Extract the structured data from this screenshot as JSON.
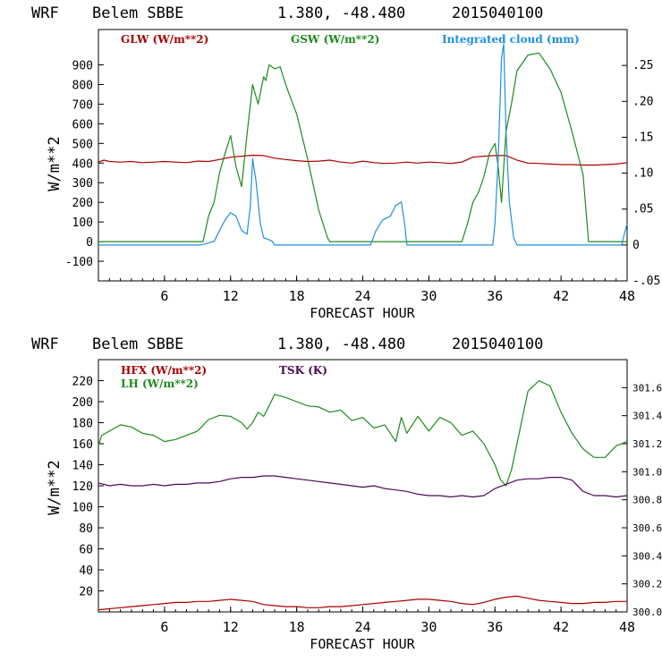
{
  "colors": {
    "red": "#aa0000",
    "green": "#1e8a1e",
    "blue": "#1f8fe0",
    "purple": "#4b0a55",
    "axis": "#000000"
  },
  "chart_data": [
    {
      "type": "line",
      "header": {
        "model": "WRF",
        "station": "Belem SBBE",
        "coords": "1.380, -48.480",
        "init": "2015040100"
      },
      "xlabel": "FORECAST HOUR",
      "ylabel": "W/m**2",
      "xlim": [
        0,
        48
      ],
      "ylim": [
        -200,
        1080
      ],
      "y2lim": [
        -0.05,
        0.3
      ],
      "xticks": [
        "6",
        "12",
        "18",
        "24",
        "30",
        "36",
        "42",
        "48"
      ],
      "yticks": [
        "-100",
        "0",
        "100",
        "200",
        "300",
        "400",
        "500",
        "600",
        "700",
        "800",
        "900"
      ],
      "y2ticks": [
        "-.05",
        "0",
        ".05",
        ".10",
        ".15",
        ".20",
        ".25"
      ],
      "series": [
        {
          "name": "GLW (W/m**2)",
          "axis": "left",
          "color": "red",
          "x": [
            0,
            0.5,
            1,
            2,
            3,
            4,
            5,
            6,
            7,
            8,
            9,
            10,
            11,
            12,
            13,
            14,
            15,
            16,
            17,
            18,
            19,
            20,
            21,
            22,
            23,
            24,
            25,
            26,
            27,
            28,
            29,
            30,
            31,
            32,
            33,
            34,
            35,
            36,
            37,
            38,
            39,
            40,
            41,
            42,
            43,
            44,
            45,
            46,
            47,
            48
          ],
          "y": [
            405,
            415,
            408,
            405,
            408,
            402,
            405,
            408,
            405,
            402,
            410,
            408,
            418,
            430,
            435,
            440,
            438,
            425,
            418,
            412,
            408,
            410,
            415,
            405,
            400,
            410,
            402,
            398,
            400,
            405,
            400,
            405,
            402,
            398,
            405,
            430,
            435,
            438,
            438,
            415,
            400,
            398,
            395,
            392,
            392,
            390,
            390,
            392,
            395,
            402
          ]
        },
        {
          "name": "GSW (W/m**2)",
          "axis": "left",
          "color": "green",
          "x": [
            0,
            9.5,
            10,
            10.5,
            11,
            11.5,
            12,
            12.5,
            13,
            13.5,
            14,
            14.5,
            15,
            15.2,
            15.5,
            16,
            16.5,
            17,
            18,
            19,
            20,
            20.8,
            21,
            33,
            33.5,
            34,
            34.5,
            35,
            35.5,
            36,
            36.3,
            36.6,
            37,
            37.5,
            38,
            39,
            40,
            41,
            42,
            43,
            44,
            44.5,
            48
          ],
          "y": [
            0,
            0,
            130,
            200,
            350,
            450,
            540,
            380,
            280,
            550,
            800,
            700,
            840,
            820,
            900,
            880,
            890,
            800,
            650,
            420,
            160,
            20,
            0,
            0,
            90,
            200,
            250,
            330,
            450,
            500,
            380,
            200,
            560,
            700,
            870,
            950,
            960,
            880,
            760,
            560,
            340,
            0,
            0
          ]
        },
        {
          "name": "Integrated cloud (mm)",
          "axis": "right",
          "color": "blue",
          "x": [
            0,
            9.3,
            10.5,
            11,
            11.5,
            12,
            12.5,
            13,
            13.5,
            13.8,
            14,
            14.3,
            14.7,
            15,
            15.4,
            15.8,
            16,
            24.7,
            25.2,
            25.8,
            26.5,
            27,
            27.5,
            27.8,
            28,
            35.8,
            36,
            36.3,
            36.6,
            36.8,
            37,
            37.3,
            37.7,
            38,
            47.5,
            48
          ],
          "y": [
            0,
            0,
            0.005,
            0.02,
            0.035,
            0.045,
            0.04,
            0.02,
            0.015,
            0.055,
            0.12,
            0.09,
            0.03,
            0.01,
            0.008,
            0.005,
            0,
            0,
            0.02,
            0.035,
            0.04,
            0.055,
            0.06,
            0.03,
            0,
            0,
            0.03,
            0.12,
            0.26,
            0.28,
            0.16,
            0.06,
            0.01,
            0,
            0,
            0.03
          ]
        }
      ]
    },
    {
      "type": "line",
      "header": {
        "model": "WRF",
        "station": "Belem SBBE",
        "coords": "1.380, -48.480",
        "init": "2015040100"
      },
      "xlabel": "FORECAST HOUR",
      "ylabel": "W/m**2",
      "xlim": [
        0,
        48
      ],
      "ylim": [
        0,
        240
      ],
      "y2lim": [
        300.0,
        301.8
      ],
      "xticks": [
        "6",
        "12",
        "18",
        "24",
        "30",
        "36",
        "42",
        "48"
      ],
      "yticks": [
        "20",
        "40",
        "60",
        "80",
        "100",
        "120",
        "140",
        "160",
        "180",
        "200",
        "220"
      ],
      "y2ticks": [
        "300.0",
        "300.2",
        "300.4",
        "300.6",
        "300.8",
        "301.0",
        "301.2",
        "301.4",
        "301.6"
      ],
      "series": [
        {
          "name": "HFX (W/m**2)",
          "axis": "left",
          "color": "red",
          "x": [
            0,
            1,
            2,
            3,
            4,
            5,
            6,
            7,
            8,
            9,
            10,
            11,
            12,
            13,
            14,
            15,
            16,
            17,
            18,
            19,
            20,
            21,
            22,
            23,
            24,
            25,
            26,
            27,
            28,
            29,
            30,
            31,
            32,
            33,
            34,
            35,
            36,
            37,
            38,
            39,
            40,
            41,
            42,
            43,
            44,
            45,
            46,
            47,
            48
          ],
          "y": [
            2,
            3,
            4,
            5,
            6,
            7,
            8,
            9,
            9,
            10,
            10,
            11,
            12,
            11,
            10,
            7,
            6,
            5,
            5,
            4,
            4,
            5,
            5,
            6,
            7,
            8,
            9,
            10,
            11,
            12,
            12,
            11,
            10,
            8,
            7,
            9,
            12,
            14,
            15,
            13,
            11,
            10,
            9,
            8,
            8,
            9,
            9,
            10,
            10
          ]
        },
        {
          "name": "LH  (W/m**2)",
          "axis": "left",
          "color": "green",
          "x": [
            0,
            0.3,
            1,
            2,
            3,
            4,
            5,
            6,
            7,
            8,
            9,
            10,
            11,
            12,
            13,
            13.5,
            14,
            14.5,
            15,
            15.5,
            16,
            17,
            18,
            19,
            20,
            21,
            22,
            23,
            24,
            25,
            26,
            27,
            27.5,
            28,
            29,
            30,
            31,
            32,
            33,
            34,
            35,
            36,
            36.5,
            37,
            37.5,
            38,
            39,
            40,
            41,
            42,
            43,
            44,
            45,
            46,
            47,
            48
          ],
          "y": [
            158,
            168,
            172,
            178,
            176,
            170,
            168,
            162,
            164,
            168,
            172,
            183,
            187,
            186,
            180,
            174,
            180,
            190,
            186,
            196,
            207,
            204,
            200,
            196,
            195,
            190,
            192,
            182,
            185,
            175,
            178,
            162,
            185,
            170,
            186,
            172,
            185,
            180,
            168,
            172,
            160,
            140,
            126,
            120,
            135,
            160,
            210,
            220,
            215,
            190,
            170,
            155,
            147,
            147,
            158,
            162
          ]
        },
        {
          "name": "TSK (K)",
          "axis": "right",
          "color": "purple",
          "x": [
            0,
            1,
            2,
            3,
            4,
            5,
            6,
            7,
            8,
            9,
            10,
            11,
            12,
            13,
            14,
            15,
            16,
            17,
            18,
            19,
            20,
            21,
            22,
            23,
            24,
            25,
            26,
            27,
            28,
            29,
            30,
            31,
            32,
            33,
            34,
            35,
            36,
            37,
            38,
            39,
            40,
            41,
            42,
            43,
            44,
            45,
            46,
            47,
            48
          ],
          "y": [
            300.92,
            300.9,
            300.91,
            300.9,
            300.9,
            300.91,
            300.9,
            300.91,
            300.91,
            300.92,
            300.92,
            300.93,
            300.95,
            300.96,
            300.96,
            300.97,
            300.97,
            300.96,
            300.95,
            300.94,
            300.93,
            300.92,
            300.91,
            300.9,
            300.89,
            300.9,
            300.88,
            300.87,
            300.86,
            300.84,
            300.83,
            300.83,
            300.82,
            300.83,
            300.82,
            300.83,
            300.88,
            300.91,
            300.94,
            300.95,
            300.95,
            300.96,
            300.96,
            300.94,
            300.86,
            300.83,
            300.83,
            300.82,
            300.83
          ]
        }
      ]
    }
  ]
}
